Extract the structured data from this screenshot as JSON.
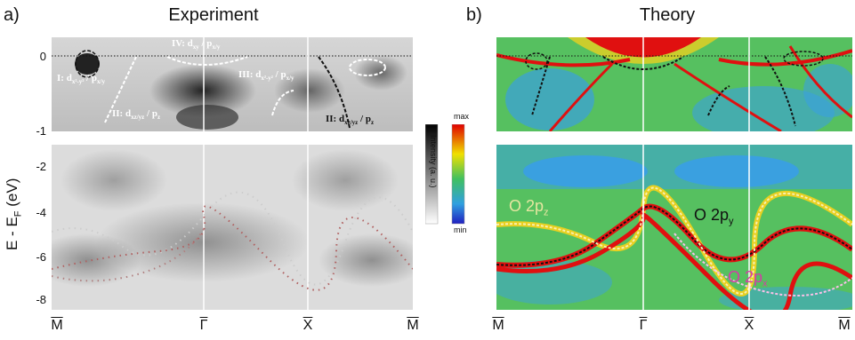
{
  "panel_a": {
    "letter": "a)",
    "title": "Experiment",
    "ylabel": "E - E",
    "ylabel_sub": "F",
    "ylabel_unit": " (eV)",
    "yticks_top": [
      "0",
      "-1"
    ],
    "yticks_bottom": [
      "-2",
      "-4",
      "-6",
      "-8"
    ],
    "xticks": [
      "M",
      "Γ",
      "X",
      "M"
    ],
    "annotations": {
      "iv": {
        "roman": "IV: d",
        "s1": "xy",
        "mid": " / p",
        "s2": "x/y"
      },
      "i": {
        "roman": "I: d",
        "s1": "x²-y²",
        "mid": " / p",
        "s2": "x/y"
      },
      "ii_left": {
        "roman": "II: d",
        "s1": "xz/yz",
        "mid": " / p",
        "s2": "z"
      },
      "iii": {
        "roman": "III: d",
        "s1": "x²-y²",
        "mid": " / p",
        "s2": "x/y"
      },
      "ii_right": {
        "roman": "II: d",
        "s1": "xz/yz",
        "mid": " / p",
        "s2": "z"
      }
    }
  },
  "colorbar": {
    "max": "max",
    "min": "min",
    "label": "Intensity (a. u.)"
  },
  "panel_b": {
    "letter": "b)",
    "title": "Theory",
    "xticks": [
      "M",
      "Γ",
      "X",
      "M"
    ],
    "orbitals": {
      "pz": {
        "base": "O 2p",
        "sub": "z",
        "color": "#e6e6a0"
      },
      "py": {
        "base": "O 2p",
        "sub": "y",
        "color": "#111111"
      },
      "px": {
        "base": "O 2p",
        "sub": "x",
        "color": "#d63aa8"
      }
    }
  }
}
